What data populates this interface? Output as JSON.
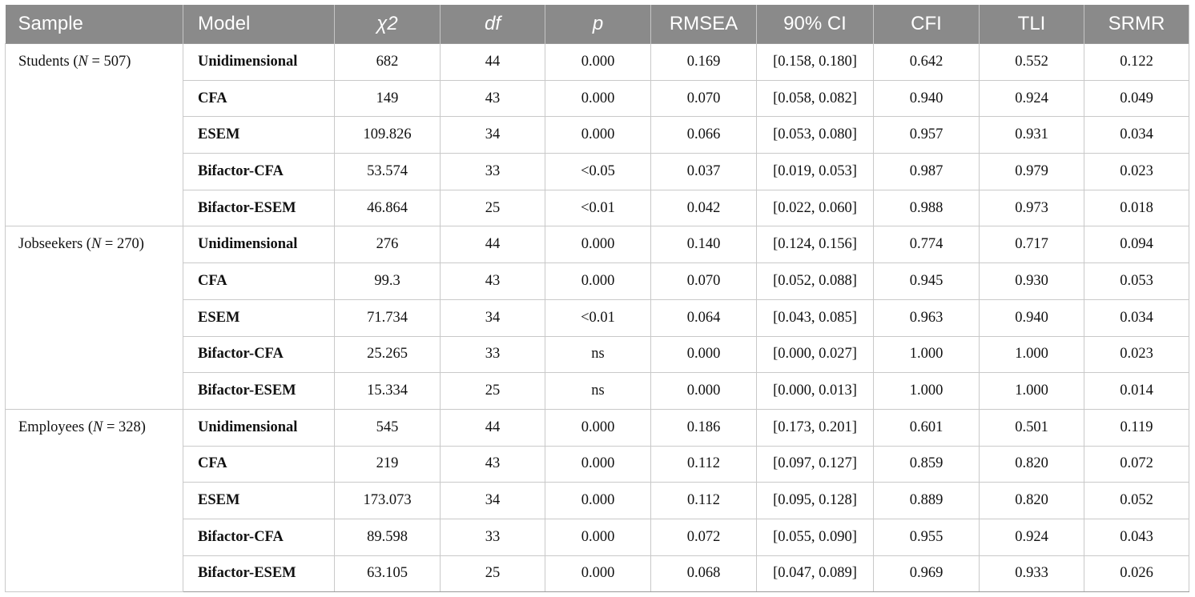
{
  "headers": {
    "sample": "Sample",
    "model": "Model",
    "chi2": "χ2",
    "df": "df",
    "p": "p",
    "rmsea": "RMSEA",
    "ci": "90% CI",
    "cfi": "CFI",
    "tli": "TLI",
    "srmr": "SRMR"
  },
  "groups": [
    {
      "sample_prefix": "Students (",
      "sample_n": "N",
      "sample_suffix": " = 507)",
      "rows": [
        [
          "Unidimensional",
          "682",
          "44",
          "0.000",
          "0.169",
          "[0.158, 0.180]",
          "0.642",
          "0.552",
          "0.122"
        ],
        [
          "CFA",
          "149",
          "43",
          "0.000",
          "0.070",
          "[0.058, 0.082]",
          "0.940",
          "0.924",
          "0.049"
        ],
        [
          "ESEM",
          "109.826",
          "34",
          "0.000",
          "0.066",
          "[0.053, 0.080]",
          "0.957",
          "0.931",
          "0.034"
        ],
        [
          "Bifactor-CFA",
          "53.574",
          "33",
          "<0.05",
          "0.037",
          "[0.019, 0.053]",
          "0.987",
          "0.979",
          "0.023"
        ],
        [
          "Bifactor-ESEM",
          "46.864",
          "25",
          "<0.01",
          "0.042",
          "[0.022, 0.060]",
          "0.988",
          "0.973",
          "0.018"
        ]
      ]
    },
    {
      "sample_prefix": "Jobseekers (",
      "sample_n": "N",
      "sample_suffix": " = 270)",
      "rows": [
        [
          "Unidimensional",
          "276",
          "44",
          "0.000",
          "0.140",
          "[0.124, 0.156]",
          "0.774",
          "0.717",
          "0.094"
        ],
        [
          "CFA",
          "99.3",
          "43",
          "0.000",
          "0.070",
          "[0.052, 0.088]",
          "0.945",
          "0.930",
          "0.053"
        ],
        [
          "ESEM",
          "71.734",
          "34",
          "<0.01",
          "0.064",
          "[0.043, 0.085]",
          "0.963",
          "0.940",
          "0.034"
        ],
        [
          "Bifactor-CFA",
          "25.265",
          "33",
          "ns",
          "0.000",
          "[0.000, 0.027]",
          "1.000",
          "1.000",
          "0.023"
        ],
        [
          "Bifactor-ESEM",
          "15.334",
          "25",
          "ns",
          "0.000",
          "[0.000, 0.013]",
          "1.000",
          "1.000",
          "0.014"
        ]
      ]
    },
    {
      "sample_prefix": "Employees (",
      "sample_n": "N",
      "sample_suffix": " = 328)",
      "rows": [
        [
          "Unidimensional",
          "545",
          "44",
          "0.000",
          "0.186",
          "[0.173, 0.201]",
          "0.601",
          "0.501",
          "0.119"
        ],
        [
          "CFA",
          "219",
          "43",
          "0.000",
          "0.112",
          "[0.097, 0.127]",
          "0.859",
          "0.820",
          "0.072"
        ],
        [
          "ESEM",
          "173.073",
          "34",
          "0.000",
          "0.112",
          "[0.095, 0.128]",
          "0.889",
          "0.820",
          "0.052"
        ],
        [
          "Bifactor-CFA",
          "89.598",
          "33",
          "0.000",
          "0.072",
          "[0.055, 0.090]",
          "0.955",
          "0.924",
          "0.043"
        ],
        [
          "Bifactor-ESEM",
          "63.105",
          "25",
          "0.000",
          "0.068",
          "[0.047, 0.089]",
          "0.969",
          "0.933",
          "0.026"
        ]
      ]
    }
  ]
}
